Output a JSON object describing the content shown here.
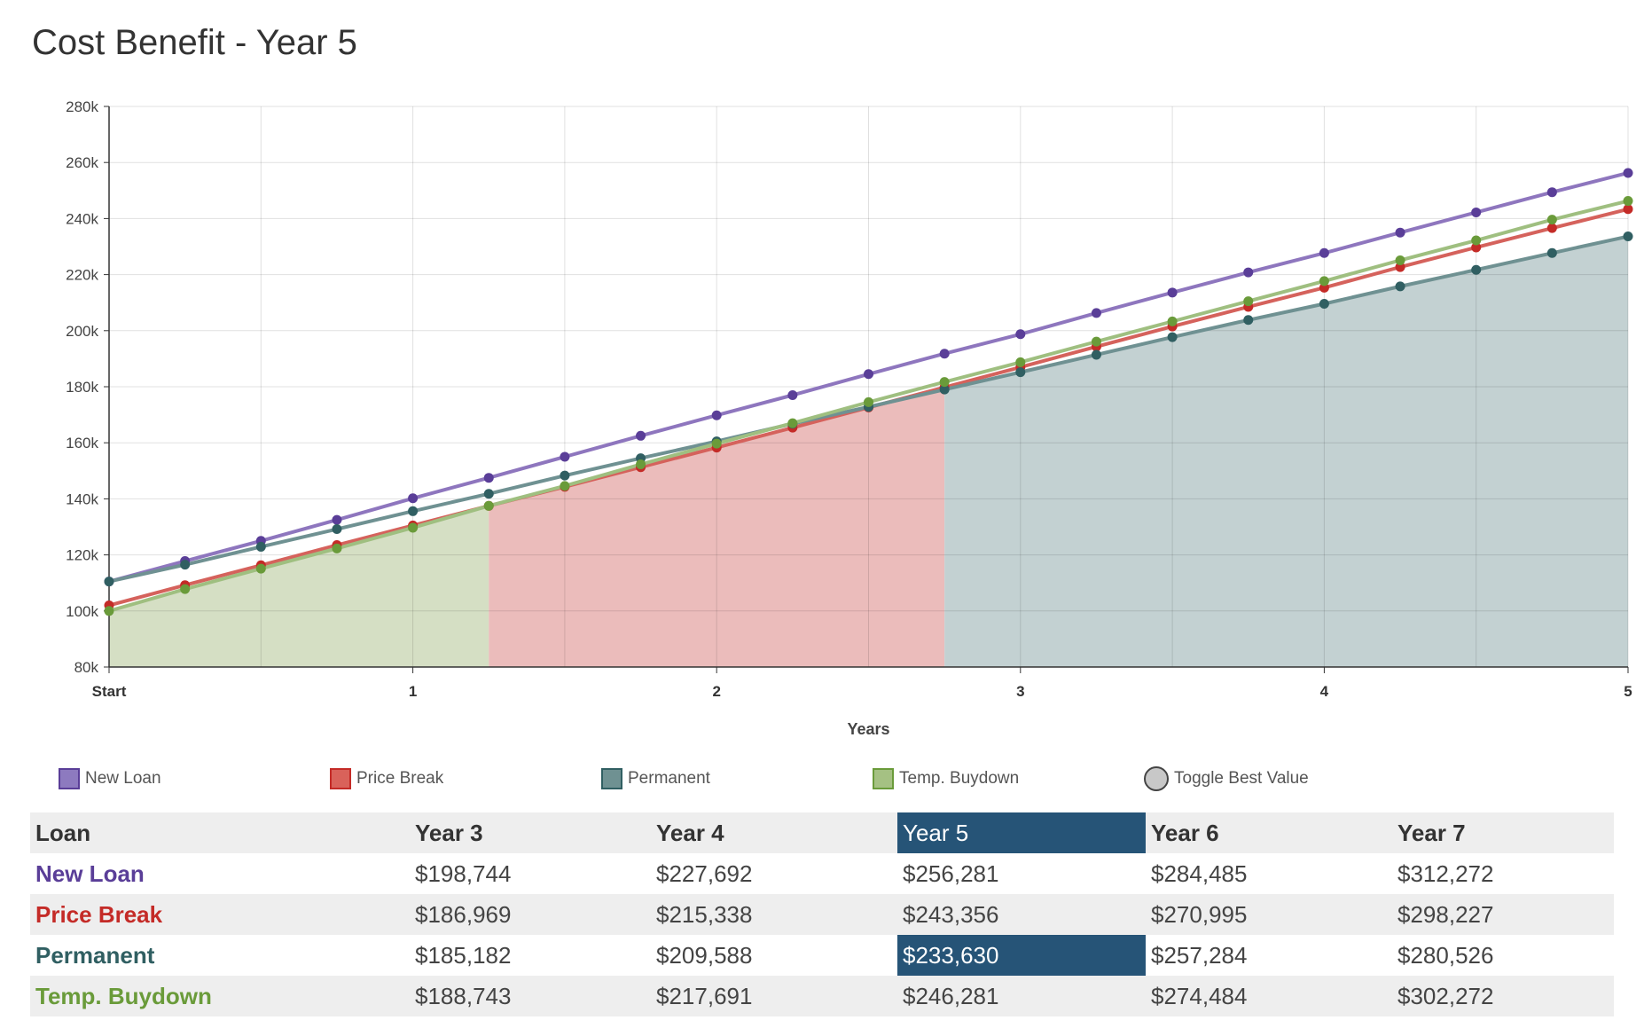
{
  "page": {
    "title": "Cost Benefit - Year 5"
  },
  "chart_data": {
    "type": "line",
    "title": "",
    "xlabel": "Years",
    "ylabel": "",
    "xlim": [
      0,
      5
    ],
    "ylim": [
      80000,
      280000
    ],
    "y_ticks": [
      80000,
      100000,
      120000,
      140000,
      160000,
      180000,
      200000,
      220000,
      240000,
      260000,
      280000
    ],
    "y_tick_labels": [
      "80k",
      "100k",
      "120k",
      "140k",
      "160k",
      "180k",
      "200k",
      "220k",
      "240k",
      "260k",
      "280k"
    ],
    "x_ticks": [
      0,
      1,
      2,
      3,
      4,
      5
    ],
    "x_tick_labels": [
      "Start",
      "1",
      "2",
      "3",
      "4",
      "5"
    ],
    "grid": true,
    "legend_position": "bottom-left",
    "x": [
      0,
      0.25,
      0.5,
      0.75,
      1,
      1.25,
      1.5,
      1.75,
      2,
      2.25,
      2.5,
      2.75,
      3,
      3.25,
      3.5,
      3.75,
      4,
      4.25,
      4.5,
      4.75,
      5
    ],
    "series": [
      {
        "name": "New Loan",
        "color": "#5a3e98",
        "values": [
          110500,
          117800,
          125000,
          132500,
          140200,
          147500,
          155000,
          162500,
          169800,
          177000,
          184500,
          191800,
          198744,
          206300,
          213600,
          220800,
          227692,
          235000,
          242200,
          249400,
          256281
        ]
      },
      {
        "name": "Price Break",
        "color": "#c42b27",
        "values": [
          102000,
          109200,
          116300,
          123500,
          130500,
          137500,
          144300,
          151300,
          158300,
          165400,
          172600,
          179800,
          186969,
          194300,
          201500,
          208500,
          215338,
          222700,
          229700,
          236600,
          243356
        ]
      },
      {
        "name": "Permanent",
        "color": "#305f62",
        "values": [
          110500,
          116500,
          122900,
          129200,
          135600,
          141800,
          148300,
          154500,
          160500,
          166800,
          172800,
          179000,
          185182,
          191400,
          197700,
          203800,
          209588,
          215800,
          221700,
          227700,
          233630
        ]
      },
      {
        "name": "Temp. Buydown",
        "color": "#6a9b3a",
        "values": [
          100000,
          107800,
          115100,
          122300,
          129700,
          137500,
          144600,
          152300,
          159700,
          167000,
          174500,
          181700,
          188743,
          196100,
          203300,
          210500,
          217691,
          225100,
          232200,
          239600,
          246281
        ]
      }
    ],
    "best_value_regions": [
      {
        "series": "Temp. Buydown",
        "x_range": [
          0,
          1.25
        ],
        "color": "#d5dfc4"
      },
      {
        "series": "Price Break",
        "x_range": [
          1.25,
          2.75
        ],
        "color": "#ebbcbb"
      },
      {
        "series": "Permanent",
        "x_range": [
          2.75,
          5
        ],
        "color": "#c3d1d2"
      }
    ]
  },
  "legend": {
    "items": [
      {
        "label": "New Loan",
        "fill": "#8d7abf",
        "border": "#5a3e98"
      },
      {
        "label": "Price Break",
        "fill": "#d9625a",
        "border": "#c42b27"
      },
      {
        "label": "Permanent",
        "fill": "#6f9192",
        "border": "#305f62"
      },
      {
        "label": "Temp. Buydown",
        "fill": "#a5c183",
        "border": "#6a9b3a"
      }
    ],
    "toggle_label": "Toggle Best Value"
  },
  "table": {
    "headers": [
      "Loan",
      "Year 3",
      "Year 4",
      "Year 5",
      "Year 6",
      "Year 7"
    ],
    "highlight_header_col": 3,
    "rows": [
      {
        "loan": "New Loan",
        "color": "#5a3e98",
        "values": [
          "$198,744",
          "$227,692",
          "$256,281",
          "$284,485",
          "$312,272"
        ]
      },
      {
        "loan": "Price Break",
        "color": "#c42b27",
        "values": [
          "$186,969",
          "$215,338",
          "$243,356",
          "$270,995",
          "$298,227"
        ]
      },
      {
        "loan": "Permanent",
        "color": "#305f62",
        "values": [
          "$185,182",
          "$209,588",
          "$233,630",
          "$257,284",
          "$280,526"
        ]
      },
      {
        "loan": "Temp. Buydown",
        "color": "#6a9b3a",
        "values": [
          "$188,743",
          "$217,691",
          "$246,281",
          "$274,484",
          "$302,272"
        ]
      }
    ],
    "highlight_cell": {
      "row": 2,
      "col": 3
    },
    "highlight_color": "#265477"
  }
}
